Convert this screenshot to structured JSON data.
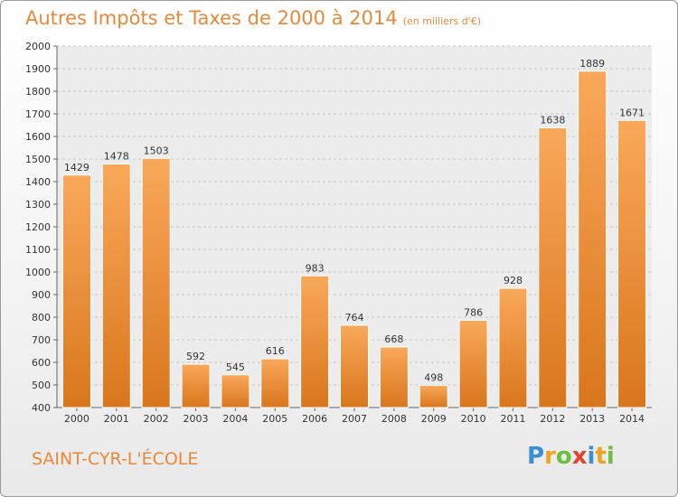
{
  "title": "Autres Impôts et Taxes de 2000 à 2014",
  "title_unit": "(en milliers d'€)",
  "city": "SAINT-CYR-L'ÉCOLE",
  "logo": {
    "letters": [
      {
        "ch": "P",
        "color": "#3a8fd6"
      },
      {
        "ch": "r",
        "color": "#f2a21b"
      },
      {
        "ch": "o",
        "color": "#6cbf3a"
      },
      {
        "ch": "x",
        "color": "#e8412c"
      },
      {
        "ch": "i",
        "color": "#3a8fd6"
      },
      {
        "ch": "t",
        "color": "#f2a21b"
      },
      {
        "ch": "i",
        "color": "#6cbf3a"
      }
    ]
  },
  "colors": {
    "bar_top": "#f9a85a",
    "bar_bottom": "#d9761c",
    "title": "#e8893a"
  },
  "chart_data": {
    "type": "bar",
    "categories": [
      "2000",
      "2001",
      "2002",
      "2003",
      "2004",
      "2005",
      "2006",
      "2007",
      "2008",
      "2009",
      "2010",
      "2011",
      "2012",
      "2013",
      "2014"
    ],
    "values": [
      1429,
      1478,
      1503,
      592,
      545,
      616,
      983,
      764,
      668,
      498,
      786,
      928,
      1638,
      1889,
      1671
    ],
    "ylim": [
      400,
      2000
    ],
    "yticks": [
      400,
      500,
      600,
      700,
      800,
      900,
      1000,
      1100,
      1200,
      1300,
      1400,
      1500,
      1600,
      1700,
      1800,
      1900,
      2000
    ],
    "grid": true,
    "legend": "none"
  }
}
